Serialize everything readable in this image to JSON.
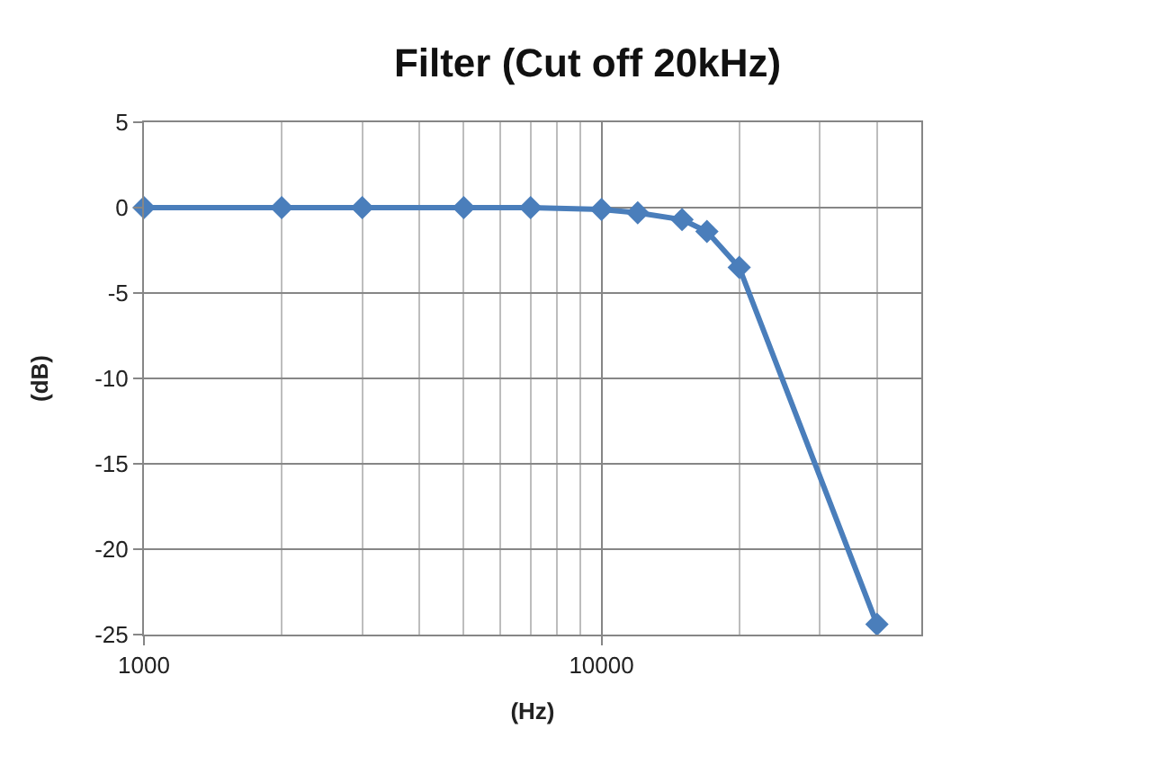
{
  "chart_data": {
    "type": "line",
    "title": "Filter (Cut off 20kHz)",
    "xlabel": "(Hz)",
    "ylabel": "(dB)",
    "x": [
      1000,
      2000,
      3000,
      5000,
      7000,
      10000,
      12000,
      15000,
      17000,
      20000,
      40000
    ],
    "series": [
      {
        "color": "#4a7ebb",
        "values": [
          0,
          0,
          0,
          0,
          0,
          -0.1,
          -0.3,
          -0.7,
          -1.4,
          -3.5,
          -24.4
        ]
      }
    ],
    "log": "x",
    "xlim": [
      1000,
      50000
    ],
    "xticks": [
      1000,
      {
        "value": 2000,
        "label": null
      },
      {
        "value": 3000,
        "label": null
      },
      {
        "value": 4000,
        "label": null
      },
      {
        "value": 5000,
        "label": null
      },
      {
        "value": 6000,
        "label": null
      },
      {
        "value": 7000,
        "label": null
      },
      {
        "value": 8000,
        "label": null
      },
      {
        "value": 9000,
        "label": null
      },
      10000,
      {
        "value": 20000,
        "label": null
      },
      {
        "value": 30000,
        "label": null
      },
      {
        "value": 40000,
        "label": null
      }
    ],
    "ylim": [
      -25,
      5
    ],
    "yticks": [
      5,
      0,
      -5,
      -10,
      -15,
      -20,
      -25
    ],
    "grid": true,
    "marker": "diamond",
    "line_style": "solid"
  }
}
